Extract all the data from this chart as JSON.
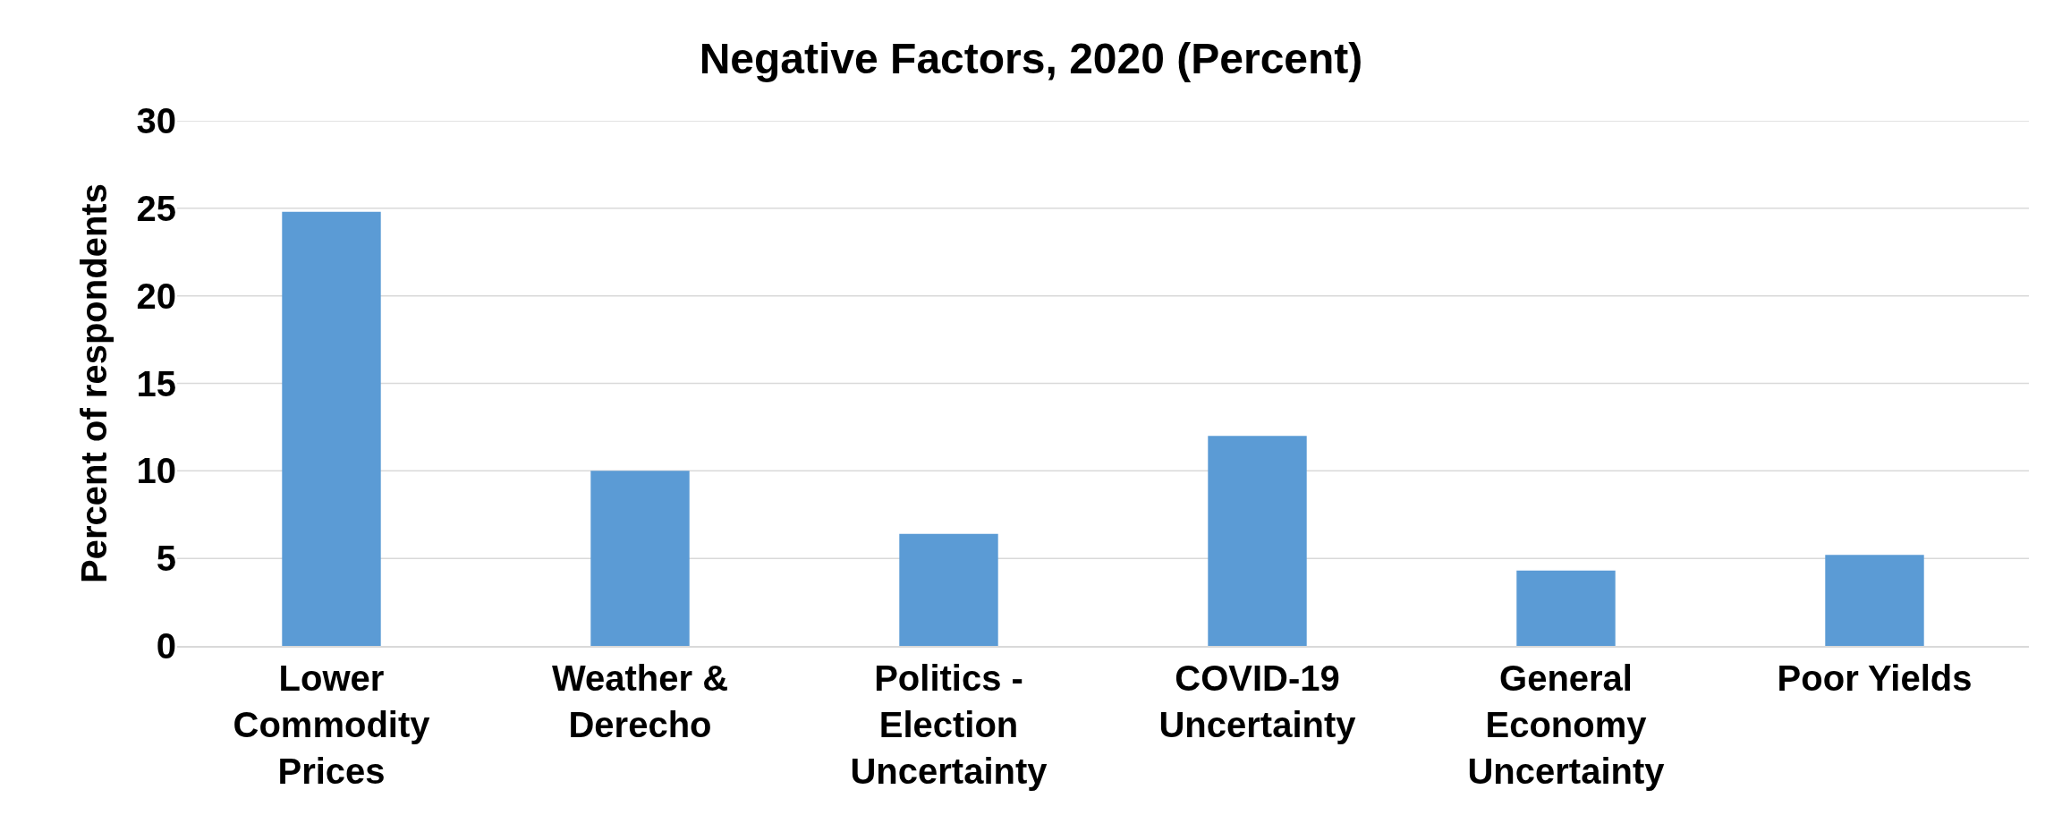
{
  "chart_data": {
    "type": "bar",
    "title": "Negative Factors, 2020 (Percent)",
    "ylabel": "Percent of respondents",
    "categories": [
      "Lower Commodity Prices",
      "Weather & Derecho",
      "Politics - Election Uncertainty",
      "COVID-19 Uncertainty",
      "General Economy Uncertainty",
      "Poor Yields"
    ],
    "values": [
      24.8,
      10.0,
      6.4,
      12.0,
      4.3,
      5.2
    ],
    "color": "#5b9bd5",
    "ylim": [
      0,
      30
    ],
    "yticks": [
      0,
      5,
      10,
      15,
      20,
      25,
      30
    ],
    "grid": "y"
  }
}
